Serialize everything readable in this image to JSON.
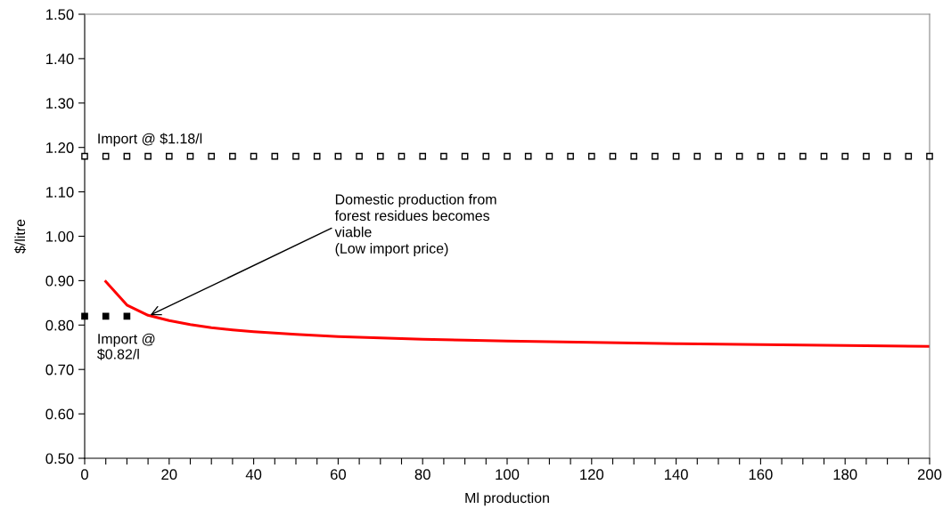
{
  "chart_data": {
    "type": "scatter",
    "xlabel": "Ml production",
    "ylabel": "$/litre",
    "xlim": [
      0,
      200
    ],
    "ylim": [
      0.5,
      1.5
    ],
    "xticks": [
      0,
      {
        "value": 5,
        "label": null
      },
      {
        "value": 10,
        "label": null
      },
      {
        "value": 15,
        "label": null
      },
      20,
      {
        "value": 25,
        "label": null
      },
      {
        "value": 30,
        "label": null
      },
      {
        "value": 35,
        "label": null
      },
      40,
      {
        "value": 45,
        "label": null
      },
      {
        "value": 50,
        "label": null
      },
      {
        "value": 55,
        "label": null
      },
      60,
      {
        "value": 65,
        "label": null
      },
      {
        "value": 70,
        "label": null
      },
      {
        "value": 75,
        "label": null
      },
      80,
      {
        "value": 85,
        "label": null
      },
      {
        "value": 90,
        "label": null
      },
      {
        "value": 95,
        "label": null
      },
      100,
      {
        "value": 105,
        "label": null
      },
      {
        "value": 110,
        "label": null
      },
      {
        "value": 115,
        "label": null
      },
      120,
      {
        "value": 125,
        "label": null
      },
      {
        "value": 130,
        "label": null
      },
      {
        "value": 135,
        "label": null
      },
      140,
      {
        "value": 145,
        "label": null
      },
      {
        "value": 150,
        "label": null
      },
      {
        "value": 155,
        "label": null
      },
      160,
      {
        "value": 165,
        "label": null
      },
      {
        "value": 170,
        "label": null
      },
      {
        "value": 175,
        "label": null
      },
      180,
      {
        "value": 185,
        "label": null
      },
      {
        "value": 190,
        "label": null
      },
      {
        "value": 195,
        "label": null
      },
      200
    ],
    "yticks": [
      {
        "value": 0.5,
        "label": "0.50"
      },
      {
        "value": 0.6,
        "label": "0.60"
      },
      {
        "value": 0.7,
        "label": "0.70"
      },
      {
        "value": 0.8,
        "label": "0.80"
      },
      {
        "value": 0.9,
        "label": "0.90"
      },
      {
        "value": 1.0,
        "label": "1.00"
      },
      {
        "value": 1.1,
        "label": "1.10"
      },
      {
        "value": 1.2,
        "label": "1.20"
      },
      {
        "value": 1.3,
        "label": "1.30"
      },
      {
        "value": 1.4,
        "label": "1.40"
      },
      {
        "value": 1.5,
        "label": "1.50"
      }
    ],
    "grid": false,
    "legend": false,
    "series": [
      {
        "name": "Import @ $1.18/l",
        "marker": "square",
        "color": "#000000",
        "x": [
          0,
          5,
          10,
          15,
          20,
          25,
          30,
          35,
          40,
          45,
          50,
          55,
          60,
          65,
          70,
          75,
          80,
          85,
          90,
          95,
          100,
          105,
          110,
          115,
          120,
          125,
          130,
          135,
          140,
          145,
          150,
          155,
          160,
          165,
          170,
          175,
          180,
          185,
          190,
          195,
          200
        ],
        "values": [
          1.18,
          1.18,
          1.18,
          1.18,
          1.18,
          1.18,
          1.18,
          1.18,
          1.18,
          1.18,
          1.18,
          1.18,
          1.18,
          1.18,
          1.18,
          1.18,
          1.18,
          1.18,
          1.18,
          1.18,
          1.18,
          1.18,
          1.18,
          1.18,
          1.18,
          1.18,
          1.18,
          1.18,
          1.18,
          1.18,
          1.18,
          1.18,
          1.18,
          1.18,
          1.18,
          1.18,
          1.18,
          1.18,
          1.18,
          1.18,
          1.18
        ]
      },
      {
        "name": "Import @\n$0.82/l",
        "marker": "square",
        "color": "#000000",
        "x": [
          0,
          5,
          10
        ],
        "values": [
          0.82,
          0.82,
          0.82
        ]
      },
      {
        "type": "line",
        "color": "#ff0000",
        "marker": "none",
        "x": [
          5,
          10,
          15,
          20,
          25,
          30,
          35,
          40,
          50,
          60,
          70,
          80,
          90,
          100,
          120,
          140,
          160,
          180,
          200
        ],
        "values": [
          0.898,
          0.845,
          0.822,
          0.81,
          0.801,
          0.794,
          0.789,
          0.785,
          0.779,
          0.774,
          0.771,
          0.768,
          0.766,
          0.764,
          0.761,
          0.758,
          0.756,
          0.754,
          0.752
        ]
      }
    ],
    "annotations": [
      {
        "text": "Domestic production from\nforest residues becomes\nviable\n(Low import price)",
        "x": 15,
        "y": 0.82
      }
    ]
  }
}
